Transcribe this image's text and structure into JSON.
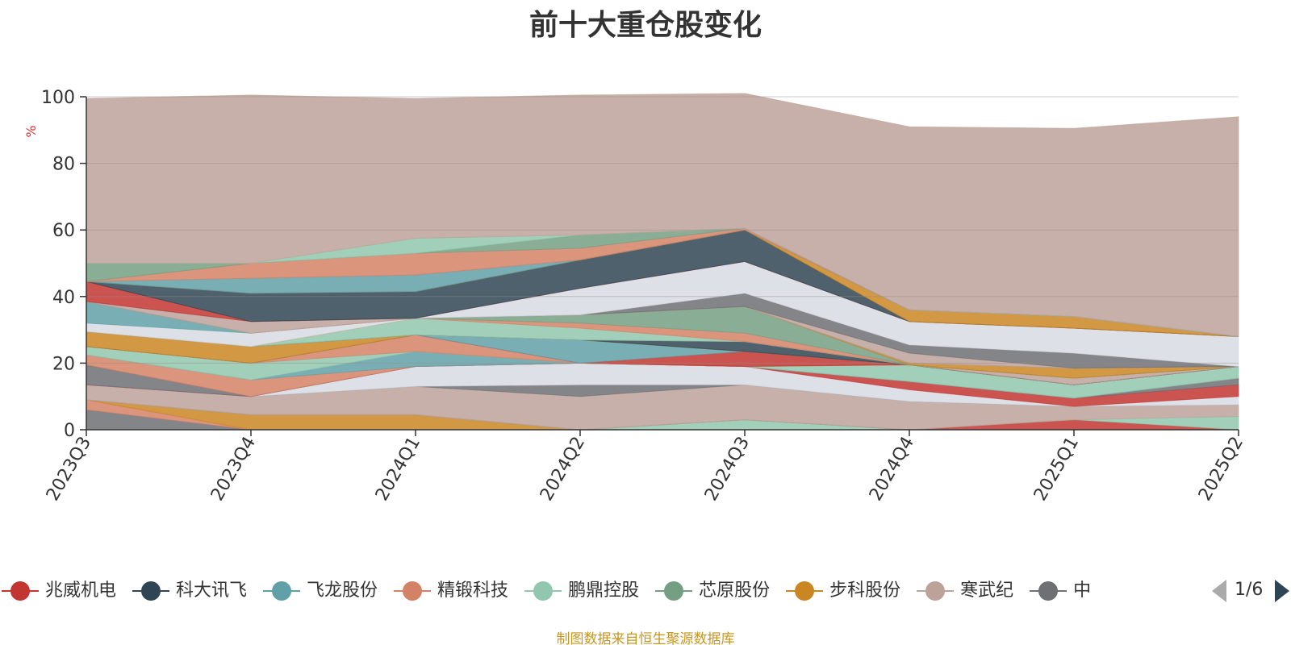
{
  "title": "前十大重仓股变化",
  "source": "制图数据来自恒生聚源数据库",
  "pager": {
    "page": "1/6"
  },
  "legend": [
    {
      "label": "兆威机电",
      "color": "#c23531"
    },
    {
      "label": "科大讯飞",
      "color": "#2f4554"
    },
    {
      "label": "飞龙股份",
      "color": "#61a0a8"
    },
    {
      "label": "精锻科技",
      "color": "#d48265"
    },
    {
      "label": "鹏鼎控股",
      "color": "#91c7ae"
    },
    {
      "label": "芯原股份",
      "color": "#749f83"
    },
    {
      "label": "步科股份",
      "color": "#ca8622"
    },
    {
      "label": "寒武纪",
      "color": "#bda29a"
    },
    {
      "label": "中",
      "color": "#6e7074"
    }
  ],
  "chart_data": {
    "type": "area",
    "stacked": true,
    "title": "前十大重仓股变化",
    "ylabel": "%",
    "ylim": [
      0,
      100
    ],
    "yticks": [
      0,
      20,
      40,
      60,
      80,
      100
    ],
    "categories": [
      "2023Q3",
      "2023Q4",
      "2024Q1",
      "2024Q2",
      "2024Q3",
      "2024Q4",
      "2025Q1",
      "2025Q2"
    ],
    "grid": true,
    "legend_position": "bottom",
    "series": [
      {
        "color": "#6e7074",
        "values": [
          6.0,
          0.0,
          0.0,
          0.0,
          0.0,
          0.0,
          0.0,
          0.0
        ]
      },
      {
        "color": "#d48265",
        "values": [
          3.0,
          0.0,
          0.0,
          0.0,
          0.0,
          0.0,
          0.0,
          0.0
        ]
      },
      {
        "color": "#ca8622",
        "values": [
          0.0,
          4.5,
          4.5,
          0.0,
          0.0,
          0.0,
          0.0,
          0.0
        ]
      },
      {
        "color": "#91c7ae",
        "values": [
          0.0,
          0.0,
          0.0,
          0.0,
          3.0,
          0.0,
          0.0,
          0.0
        ]
      },
      {
        "color": "#c23531",
        "values": [
          0.0,
          0.0,
          0.0,
          0.0,
          0.0,
          0.0,
          3.0,
          0.0
        ]
      },
      {
        "color": "#91c7ae",
        "values": [
          0.0,
          0.0,
          0.0,
          0.0,
          0.0,
          0.0,
          0.0,
          4.0
        ]
      },
      {
        "color": "#bda29a",
        "values": [
          4.5,
          5.5,
          8.5,
          10.0,
          10.5,
          8.5,
          4.0,
          3.5
        ]
      },
      {
        "color": "#6e7074",
        "values": [
          0.0,
          0.0,
          0.0,
          3.5,
          0.0,
          0.0,
          0.0,
          0.0
        ]
      },
      {
        "color": "#d7dbe2",
        "values": [
          0.0,
          0.0,
          6.0,
          6.5,
          5.5,
          3.5,
          0.0,
          2.5
        ]
      },
      {
        "color": "#c23531",
        "values": [
          0.0,
          0.0,
          0.0,
          0.0,
          0.0,
          2.5,
          2.5,
          3.5
        ]
      },
      {
        "color": "#6e7074",
        "values": [
          6.0,
          0.0,
          0.0,
          0.0,
          0.0,
          0.0,
          0.0,
          2.0
        ]
      },
      {
        "color": "#d48265",
        "values": [
          3.0,
          5.0,
          0.0,
          0.0,
          0.0,
          0.0,
          0.0,
          0.0
        ]
      },
      {
        "color": "#61a0a8",
        "values": [
          0.0,
          0.0,
          4.5,
          0.0,
          0.0,
          0.0,
          0.0,
          0.0
        ]
      },
      {
        "color": "#91c7ae",
        "values": [
          2.5,
          5.0,
          0.0,
          0.0,
          0.0,
          5.0,
          4.0,
          3.5
        ]
      },
      {
        "color": "#d48265",
        "values": [
          0.0,
          0.0,
          5.0,
          0.0,
          0.0,
          0.0,
          0.0,
          0.0
        ]
      },
      {
        "color": "#c23531",
        "values": [
          0.0,
          0.0,
          0.0,
          0.0,
          4.5,
          0.0,
          0.0,
          0.0
        ]
      },
      {
        "color": "#61a0a8",
        "values": [
          0.0,
          0.0,
          0.0,
          7.0,
          0.0,
          0.0,
          0.0,
          0.0
        ]
      },
      {
        "color": "#ca8622",
        "values": [
          4.5,
          5.0,
          0.0,
          0.0,
          0.0,
          0.0,
          0.0,
          0.0
        ]
      },
      {
        "color": "#2f4554",
        "values": [
          0.0,
          0.0,
          0.0,
          0.0,
          3.0,
          0.0,
          0.0,
          0.0
        ]
      },
      {
        "color": "#bda29a",
        "values": [
          0.0,
          0.0,
          0.0,
          0.0,
          0.0,
          0.0,
          2.0,
          0.0
        ]
      },
      {
        "color": "#749f83",
        "values": [
          0.0,
          0.0,
          0.0,
          0.0,
          0.0,
          0.0,
          0.0,
          0.0
        ]
      },
      {
        "color": "#91c7ae",
        "values": [
          0.0,
          0.0,
          5.0,
          3.5,
          0.0,
          0.0,
          0.0,
          0.0
        ]
      },
      {
        "color": "#d48265",
        "values": [
          0.0,
          0.0,
          0.0,
          1.5,
          2.5,
          0.0,
          0.0,
          0.0
        ]
      },
      {
        "color": "#749f83",
        "values": [
          0.0,
          0.0,
          0.0,
          2.5,
          8.0,
          0.0,
          0.0,
          0.0
        ]
      },
      {
        "color": "#ca8622",
        "values": [
          0.0,
          0.0,
          0.0,
          0.0,
          0.0,
          0.5,
          3.0,
          0.0
        ]
      },
      {
        "color": "#d7dbe2",
        "values": [
          2.5,
          4.0,
          0.0,
          0.0,
          0.0,
          0.0,
          0.0,
          0.0
        ]
      },
      {
        "color": "#61a0a8",
        "values": [
          6.5,
          0.0,
          0.0,
          0.0,
          0.0,
          0.0,
          0.0,
          0.0
        ]
      },
      {
        "color": "#d48265",
        "values": [
          0.0,
          0.0,
          0.0,
          0.0,
          0.0,
          0.0,
          0.0,
          0.0
        ]
      },
      {
        "color": "#bda29a",
        "values": [
          0.0,
          3.5,
          0.0,
          0.0,
          0.0,
          3.0,
          0.0,
          0.0
        ]
      },
      {
        "color": "#6e7074",
        "values": [
          0.0,
          0.0,
          0.0,
          0.0,
          4.0,
          2.5,
          4.5,
          0.0
        ]
      },
      {
        "color": "#d7dbe2",
        "values": [
          0.0,
          0.0,
          0.0,
          8.0,
          9.5,
          7.0,
          7.5,
          9.0
        ]
      },
      {
        "color": "#c23531",
        "values": [
          6.0,
          0.0,
          0.0,
          0.0,
          0.0,
          0.0,
          0.0,
          0.0
        ]
      },
      {
        "color": "#2f4554",
        "values": [
          0.0,
          8.5,
          8.0,
          8.5,
          9.5,
          0.0,
          0.0,
          0.0
        ]
      },
      {
        "color": "#ca8622",
        "values": [
          0.0,
          0.0,
          0.0,
          0.0,
          0.0,
          3.5,
          3.5,
          0.0
        ]
      },
      {
        "color": "#61a0a8",
        "values": [
          0.0,
          4.5,
          5.0,
          0.0,
          0.0,
          0.0,
          0.0,
          0.0
        ]
      },
      {
        "color": "#d48265",
        "values": [
          0.0,
          4.5,
          6.5,
          3.5,
          0.5,
          0.0,
          0.0,
          0.0
        ]
      },
      {
        "color": "#749f83",
        "values": [
          5.5,
          0.0,
          0.0,
          4.0,
          0.0,
          0.0,
          0.0,
          0.0
        ]
      },
      {
        "color": "#91c7ae",
        "values": [
          0.0,
          0.0,
          4.5,
          0.0,
          0.0,
          0.0,
          0.0,
          0.0
        ]
      },
      {
        "color": "#bda29a",
        "values": [
          49.5,
          50.5,
          42.0,
          42.0,
          40.5,
          55.0,
          56.5,
          66.0
        ]
      }
    ]
  }
}
